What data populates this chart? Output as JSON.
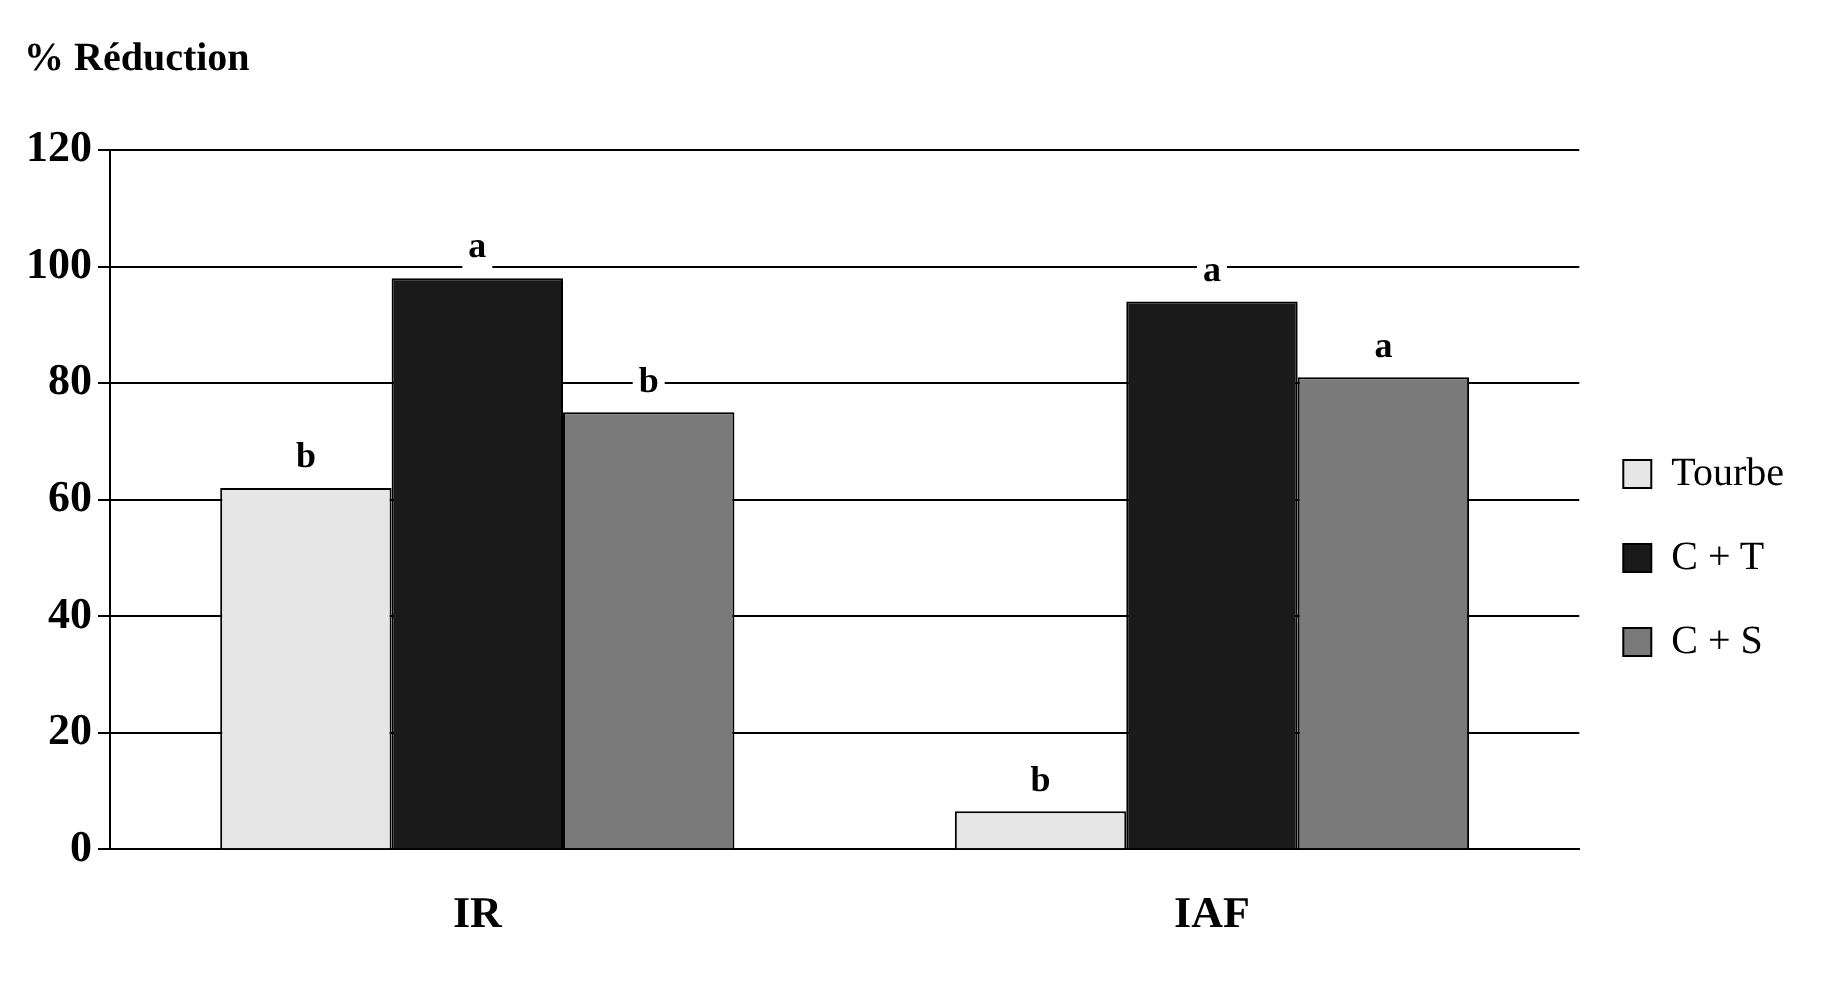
{
  "chart_data": {
    "type": "bar",
    "title": "% Réduction",
    "categories": [
      "IR",
      "IAF"
    ],
    "series": [
      {
        "name": "Tourbe",
        "color": "#e6e6e6",
        "values": [
          62,
          6.5
        ],
        "value_labels": [
          "b",
          "b"
        ]
      },
      {
        "name": "C + T",
        "color": "#1a1a1a",
        "values": [
          98,
          94
        ],
        "value_labels": [
          "a",
          "a"
        ]
      },
      {
        "name": "C + S",
        "color": "#7a7a7a",
        "values": [
          75,
          81
        ],
        "value_labels": [
          "b",
          "a"
        ]
      }
    ],
    "ylim": [
      0,
      120
    ],
    "yticks": [
      0,
      20,
      40,
      60,
      80,
      100,
      120
    ],
    "grid": "y",
    "legend": "right"
  }
}
